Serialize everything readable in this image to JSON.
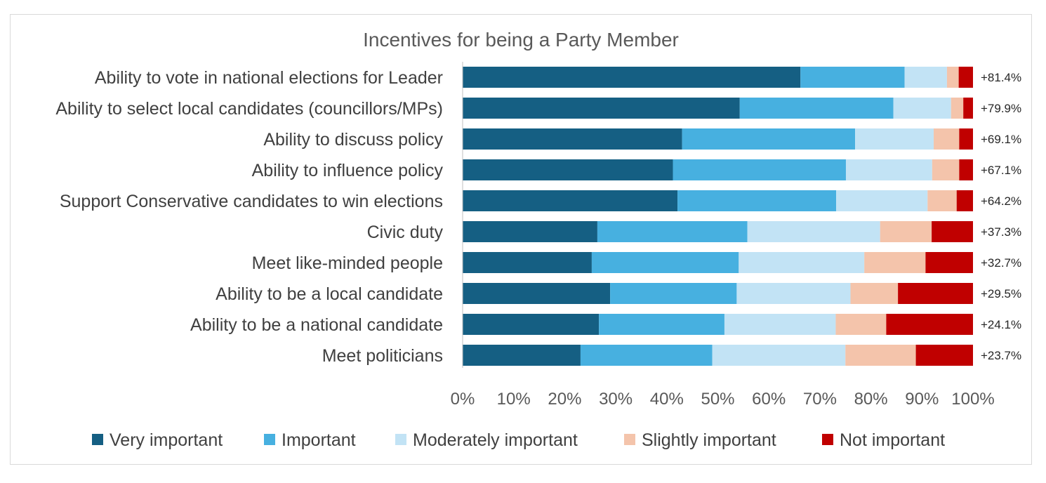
{
  "chart_data": {
    "type": "bar",
    "orientation": "horizontal",
    "stacked": "percent",
    "title": "Incentives for being a Party Member",
    "categories": [
      "Ability to vote in national elections for Leader",
      "Ability to select local candidates (councillors/MPs)",
      "Ability to discuss policy",
      "Ability to influence policy",
      "Support Conservative candidates to win elections",
      "Civic duty",
      "Meet like-minded people",
      "Ability to be a local candidate",
      "Ability to be a national candidate",
      "Meet politicians"
    ],
    "series": [
      {
        "name": "Very important",
        "color": "#155f83",
        "values": [
          66.2,
          54.3,
          43.0,
          41.2,
          42.1,
          26.4,
          25.3,
          28.9,
          26.7,
          23.1
        ]
      },
      {
        "name": "Important",
        "color": "#47b0e0",
        "values": [
          20.4,
          30.1,
          33.9,
          33.9,
          31.1,
          29.4,
          28.8,
          24.8,
          24.6,
          25.8
        ]
      },
      {
        "name": "Moderately important",
        "color": "#c2e3f5",
        "values": [
          8.3,
          11.3,
          15.4,
          16.9,
          17.9,
          26.0,
          24.6,
          22.3,
          21.8,
          26.1
        ]
      },
      {
        "name": "Slightly important",
        "color": "#f4c4ab",
        "values": [
          2.3,
          2.4,
          5.0,
          5.3,
          5.7,
          10.1,
          12.0,
          9.3,
          9.9,
          13.8
        ]
      },
      {
        "name": "Not important",
        "color": "#c00000",
        "values": [
          2.8,
          1.9,
          2.7,
          2.7,
          3.2,
          8.1,
          9.3,
          14.7,
          17.0,
          11.2
        ]
      }
    ],
    "net_labels": [
      "+81.4%",
      "+79.9%",
      "+69.1%",
      "+67.1%",
      "+64.2%",
      "+37.3%",
      "+32.7%",
      "+29.5%",
      "+24.1%",
      "+23.7%"
    ],
    "xlim": [
      0,
      100
    ],
    "x_ticks": [
      "0%",
      "10%",
      "20%",
      "30%",
      "40%",
      "50%",
      "60%",
      "70%",
      "80%",
      "90%",
      "100%"
    ],
    "grid": false,
    "legend_position": "bottom"
  }
}
